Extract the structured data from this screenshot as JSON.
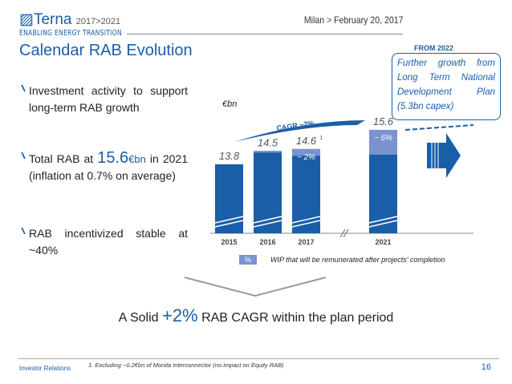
{
  "header": {
    "brand": "Terna",
    "years": "2017>2021",
    "tagline": "ENABLING ENERGY TRANSITION",
    "location": "Milan",
    "date": "February 20, 2017"
  },
  "title": "Calendar RAB Evolution",
  "bullets": [
    {
      "text": "Investment activity to support long-term RAB growth"
    },
    {
      "pre": "Total RAB at ",
      "value": "15.6",
      "unit": "€bn",
      "post": " in 2021 (inflation at 0.7% on average)"
    },
    {
      "text": "RAB incentivized stable at ~40%"
    }
  ],
  "outlook": {
    "label": "FROM 2022",
    "text": "Further growth from Long Term National Development Plan (5.3bn capex)"
  },
  "colors": {
    "primary": "#1a5ea8",
    "wip": "#7a93cf"
  },
  "chart_data": {
    "type": "bar",
    "stacked": true,
    "unit": "€bn",
    "categories": [
      "2015",
      "2016",
      "2017",
      "2021"
    ],
    "values": [
      13.8,
      14.5,
      14.6,
      15.6
    ],
    "value_labels": [
      "13.8",
      "14.5",
      "14.6",
      "15.6"
    ],
    "footnote_marks": [
      "",
      "",
      "1",
      ""
    ],
    "wip_labels": [
      "",
      "",
      "~ 2%",
      "~ 6%"
    ],
    "wip_share": [
      0,
      0.005,
      0.02,
      0.06
    ],
    "axis_break": true,
    "annotation": "CAGR ~2%",
    "legend": {
      "swatch": "%",
      "text": "WIP that will be remunerated after projects' completion"
    }
  },
  "conclusion": {
    "pre": "A Solid ",
    "value": "+2%",
    "post": " RAB CAGR within the plan period"
  },
  "footer": {
    "footnote": "1.   Excluding ~0.2€bn of Monita Interconnector (no impact on Equity RAB)",
    "left": "Investor Relations",
    "page": "16"
  }
}
